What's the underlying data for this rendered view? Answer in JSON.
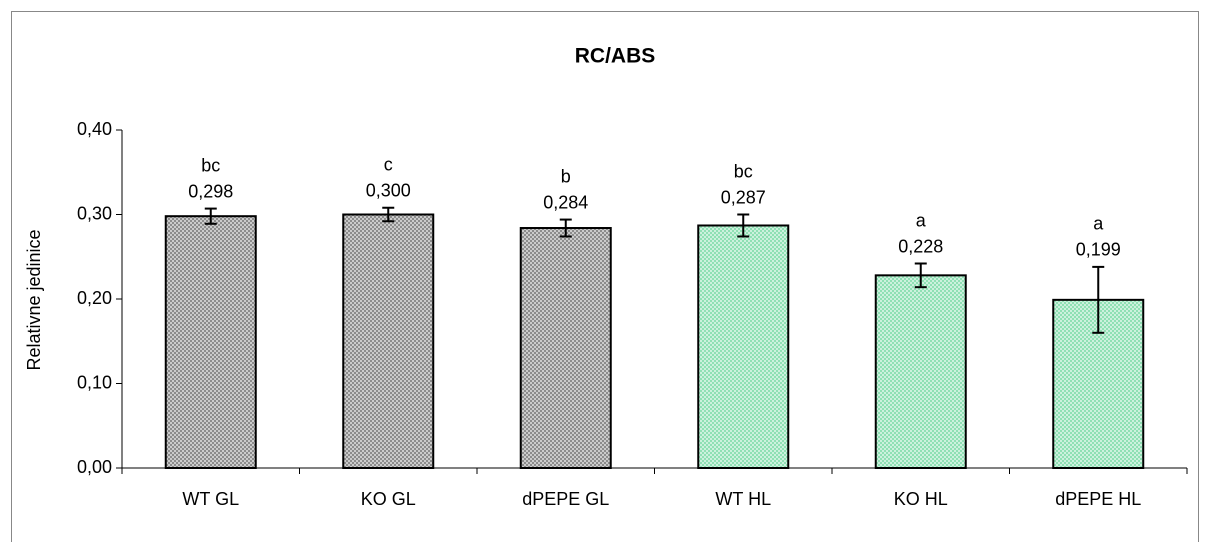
{
  "chart_data": {
    "type": "bar",
    "title": "RC/ABS",
    "ylabel": "Relativne jedinice",
    "categories": [
      "WT GL",
      "KO GL",
      "dPEPE GL",
      "WT HL",
      "KO HL",
      "dPEPE HL"
    ],
    "values": [
      0.298,
      0.3,
      0.284,
      0.287,
      0.228,
      0.199
    ],
    "value_labels": [
      "0,298",
      "0,300",
      "0,284",
      "0,287",
      "0,228",
      "0,199"
    ],
    "errors": [
      0.009,
      0.008,
      0.01,
      0.013,
      0.014,
      0.039
    ],
    "annotations": [
      "bc",
      "c",
      "b",
      "bc",
      "a",
      "a"
    ],
    "colors": [
      "#8c8c8c",
      "#8c8c8c",
      "#8c8c8c",
      "#8fe0b4",
      "#8fe0b4",
      "#8fe0b4"
    ],
    "ylim": [
      0,
      0.4
    ],
    "yticks": [
      {
        "value": 0,
        "label": "0,00"
      },
      {
        "value": 0.1,
        "label": "0,10"
      },
      {
        "value": 0.2,
        "label": "0,20"
      },
      {
        "value": 0.3,
        "label": "0,30"
      },
      {
        "value": 0.4,
        "label": "0,40"
      }
    ],
    "grid": false
  }
}
